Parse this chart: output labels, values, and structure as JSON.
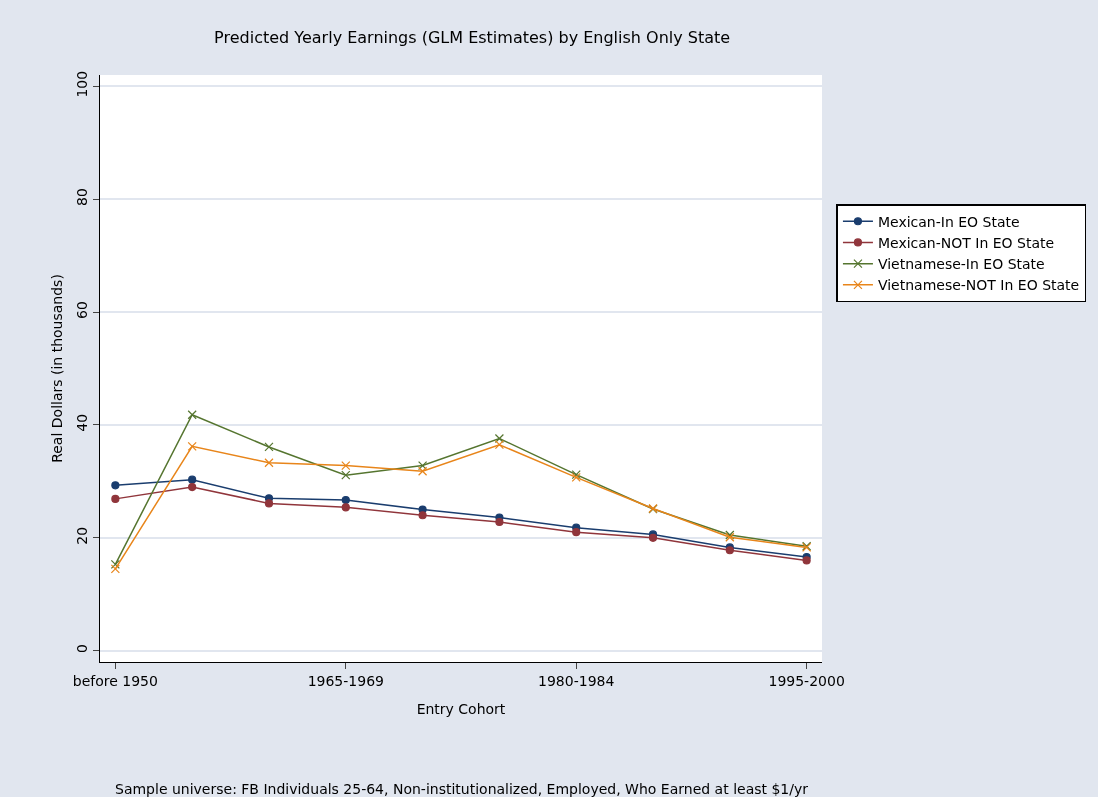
{
  "chart_data": {
    "type": "line",
    "title": "Predicted Yearly Earnings (GLM Estimates) by English Only State",
    "xlabel": "Entry Cohort",
    "ylabel": "Real Dollars (in thousands)",
    "annotations": [
      "Sample universe: FB Individuals 25-64, Non-institutionalized, Employed, Who Earned at least $1/yr"
    ],
    "categories": [
      "before 1950",
      null,
      null,
      "1965-1969",
      null,
      null,
      "1980-1984",
      null,
      null,
      "1995-2000"
    ],
    "series": [
      {
        "name": "Mexican-In EO State",
        "color": "#1a3d6e",
        "marker": "circle",
        "values": [
          29.3,
          30.3,
          27.0,
          26.7,
          25.0,
          23.6,
          21.8,
          20.6,
          18.3,
          16.6
        ]
      },
      {
        "name": "Mexican-NOT In EO State",
        "color": "#90353b",
        "marker": "circle",
        "values": [
          26.9,
          29.0,
          26.1,
          25.4,
          24.0,
          22.8,
          21.0,
          20.0,
          17.8,
          16.0
        ]
      },
      {
        "name": "Vietnamese-In EO State",
        "color": "#55752f",
        "marker": "cross",
        "values": [
          15.3,
          41.8,
          36.1,
          31.1,
          32.8,
          37.6,
          31.2,
          25.1,
          20.5,
          18.5
        ]
      },
      {
        "name": "Vietnamese-NOT In EO State",
        "color": "#e8851a",
        "marker": "cross",
        "values": [
          14.5,
          36.2,
          33.3,
          32.8,
          31.8,
          36.5,
          30.7,
          25.2,
          20.1,
          18.3
        ]
      }
    ],
    "ylim": [
      -2,
      102
    ],
    "yticks": [
      0,
      20,
      40,
      60,
      80,
      100
    ],
    "grid": "y",
    "legend": "right",
    "line_style": "solid"
  }
}
